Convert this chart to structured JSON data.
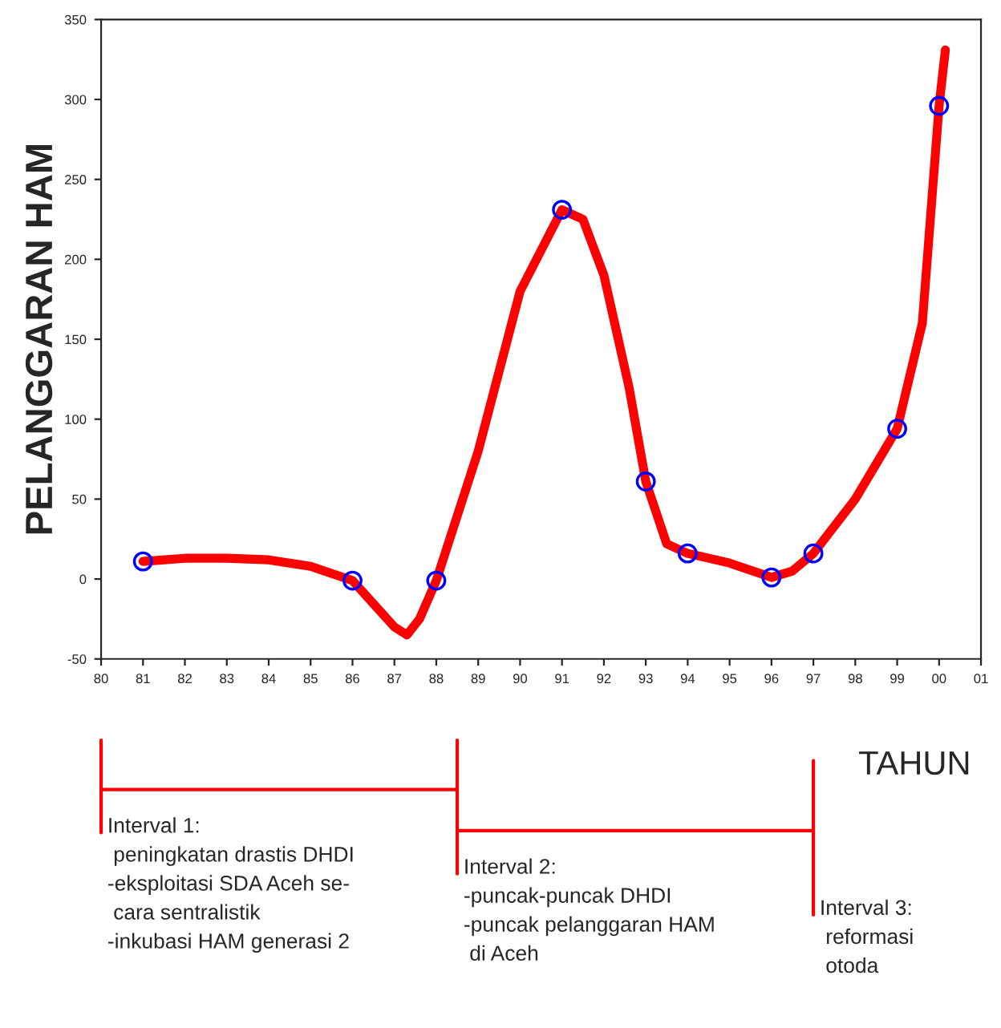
{
  "chart_data": {
    "type": "line",
    "ylabel": "PELANGGARAN HAM",
    "xlabel": "TAHUN",
    "series": [
      {
        "color": "#ff0000",
        "marker": "none",
        "x": [
          1981,
          1982,
          1983,
          1984,
          1985,
          1986,
          1987,
          1987.3,
          1987.6,
          1988,
          1989,
          1990,
          1991,
          1991.5,
          1992,
          1992.6,
          1993,
          1993.5,
          1994,
          1995,
          1996,
          1996.5,
          1997,
          1998,
          1999,
          1999.6,
          2000,
          2000.15
        ],
        "values": [
          11,
          13,
          13,
          12,
          8,
          -1,
          -30,
          -35,
          -25,
          -1,
          80,
          180,
          231,
          225,
          190,
          120,
          61,
          22,
          16,
          10,
          1,
          5,
          16,
          50,
          94,
          160,
          296,
          331
        ]
      },
      {
        "type": "scatter",
        "color": "#0000ff",
        "marker": "circle",
        "x": [
          1981,
          1986,
          1988,
          1991,
          1993,
          1994,
          1996,
          1997,
          1999,
          2000
        ],
        "values": [
          11,
          -1,
          -1,
          231,
          61,
          16,
          1,
          16,
          94,
          296
        ]
      }
    ],
    "xlim": [
      1980,
      2001
    ],
    "ylim": [
      -50,
      350
    ],
    "xticks": [
      {
        "value": 1980,
        "label": "80"
      },
      {
        "value": 1981,
        "label": "81"
      },
      {
        "value": 1982,
        "label": "82"
      },
      {
        "value": 1983,
        "label": "83"
      },
      {
        "value": 1984,
        "label": "84"
      },
      {
        "value": 1985,
        "label": "85"
      },
      {
        "value": 1986,
        "label": "86"
      },
      {
        "value": 1987,
        "label": "87"
      },
      {
        "value": 1988,
        "label": "88"
      },
      {
        "value": 1989,
        "label": "89"
      },
      {
        "value": 1990,
        "label": "90"
      },
      {
        "value": 1991,
        "label": "91"
      },
      {
        "value": 1992,
        "label": "92"
      },
      {
        "value": 1993,
        "label": "93"
      },
      {
        "value": 1994,
        "label": "94"
      },
      {
        "value": 1995,
        "label": "95"
      },
      {
        "value": 1996,
        "label": "96"
      },
      {
        "value": 1997,
        "label": "97"
      },
      {
        "value": 1998,
        "label": "98"
      },
      {
        "value": 1999,
        "label": "99"
      },
      {
        "value": 2000,
        "label": "00"
      },
      {
        "value": 2001,
        "label": "01"
      }
    ],
    "yticks": [
      -50,
      0,
      50,
      100,
      150,
      200,
      250,
      300,
      350
    ],
    "grid": false,
    "legend": false,
    "annotations": [
      "Interval 1:\n peningkatan drastis DHDI\n-eksploitasi SDA Aceh se-\n cara sentralistik\n-inkubasi HAM generasi 2",
      "Interval 2:\n-puncak-puncak DHDI\n-puncak pelanggaran HAM\n di Aceh",
      "Interval 3:\n reformasi\n otoda"
    ]
  }
}
